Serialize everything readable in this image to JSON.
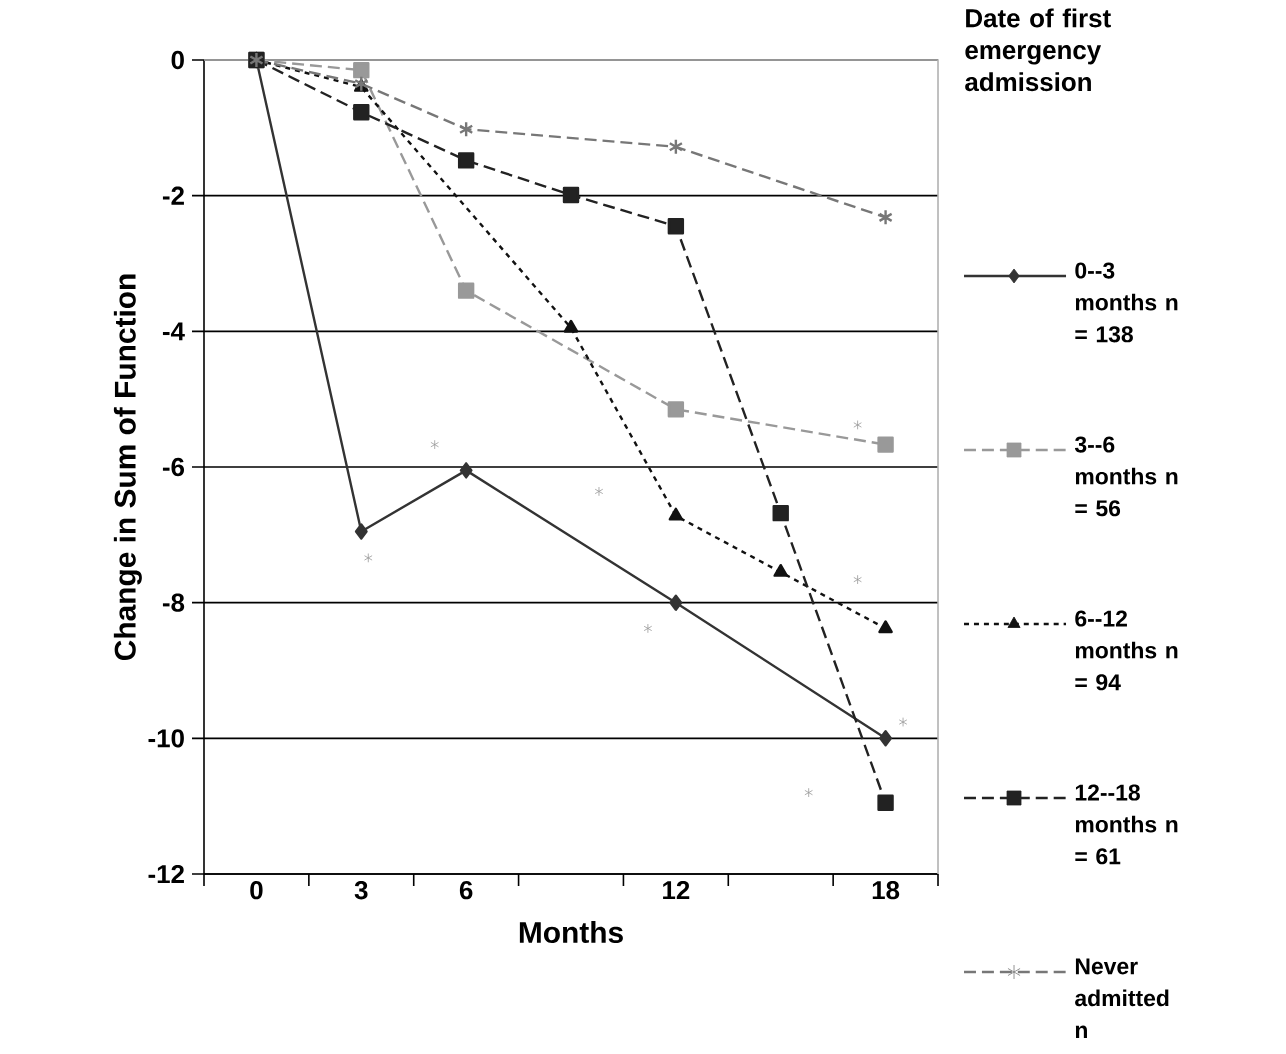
{
  "chart_data": {
    "type": "line",
    "xlabel": "Months",
    "ylabel": "Change in Sum of Function",
    "legend_title": "Date of first emergency admission",
    "xlim": [
      -1.5,
      19.5
    ],
    "ylim": [
      -12,
      0
    ],
    "xticks": [
      {
        "value": -1.5,
        "label": null
      },
      0,
      {
        "value": 1.5,
        "label": null
      },
      3,
      {
        "value": 4.5,
        "label": null
      },
      6,
      {
        "value": 7.5,
        "label": null
      },
      {
        "value": 10.5,
        "label": null
      },
      12,
      {
        "value": 13.5,
        "label": null
      },
      {
        "value": 16.5,
        "label": null
      },
      18,
      {
        "value": 19.5,
        "label": null
      }
    ],
    "yticks": [
      -12,
      -10,
      -8,
      -6,
      -4,
      -2,
      0
    ],
    "grid": "y",
    "legend": "right",
    "series": [
      {
        "name": "0--3 months n = 138",
        "color": "#333333",
        "marker": "diamond",
        "line_style": "solid",
        "x": [
          0,
          3,
          6,
          12,
          18
        ],
        "values": [
          0,
          -6.95,
          -6.05,
          -8.0,
          -10.0
        ]
      },
      {
        "name": "3--6 months n = 56",
        "color": "#999999",
        "marker": "square",
        "line_style": "dashed",
        "x": [
          0,
          3,
          6,
          12,
          18
        ],
        "values": [
          0,
          -0.15,
          -3.4,
          -5.15,
          -5.67
        ]
      },
      {
        "name": "6--12 months n = 94",
        "color": "#111111",
        "marker": "triangle",
        "line_style": "dotted",
        "x": [
          0,
          3,
          9,
          12,
          15,
          18
        ],
        "values": [
          0,
          -0.4,
          -3.95,
          -6.72,
          -7.55,
          -8.38
        ]
      },
      {
        "name": "12--18 months n = 61",
        "color": "#222222",
        "marker": "square",
        "line_style": "dashed",
        "x": [
          0,
          3,
          6,
          9,
          12,
          15,
          18
        ],
        "values": [
          0,
          -0.77,
          -1.48,
          -1.99,
          -2.45,
          -6.68,
          -10.95
        ]
      },
      {
        "name": "Never admitted n",
        "color": "#777777",
        "marker": "cross",
        "line_style": "dashed",
        "x": [
          0,
          3,
          6,
          12,
          18
        ],
        "values": [
          0,
          -0.35,
          -1.02,
          -1.28,
          -2.32
        ]
      },
      {
        "type": "scatter",
        "color": "#999999",
        "marker": "cross",
        "x": [
          5.1,
          9.8,
          17.2,
          3.2,
          11.2,
          17.2,
          15.8,
          18.5
        ],
        "values": [
          -5.67,
          -6.36,
          -5.38,
          -7.34,
          -8.38,
          -7.66,
          -10.8,
          -9.76
        ]
      }
    ]
  }
}
